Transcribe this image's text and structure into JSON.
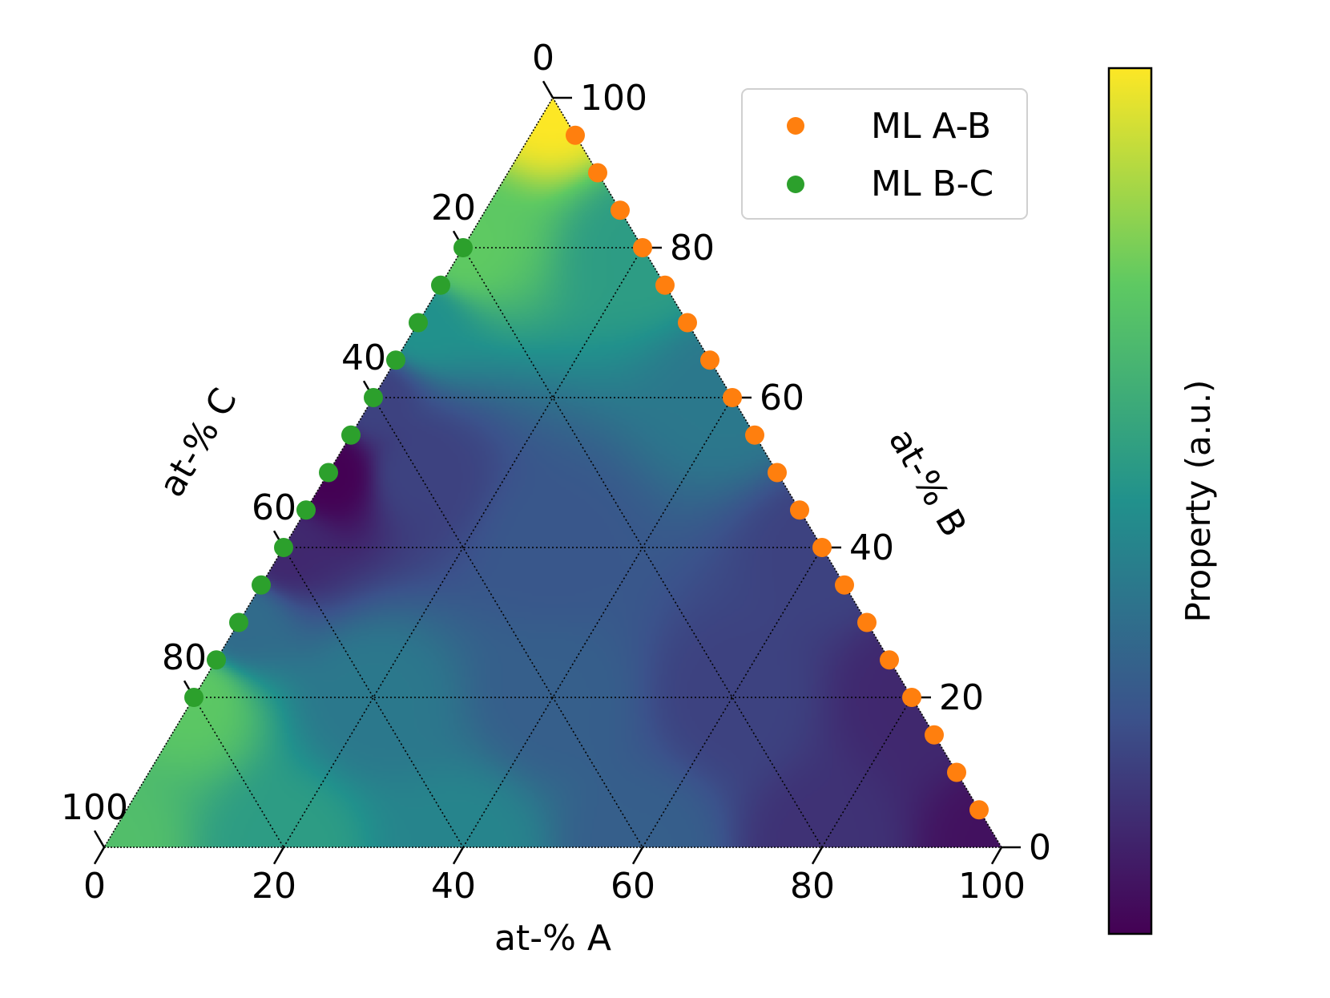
{
  "chart_data": {
    "type": "ternary-heatmap",
    "axes": {
      "A": {
        "label": "at-% A",
        "ticks": [
          0,
          20,
          40,
          60,
          80,
          100
        ],
        "range": [
          0,
          100
        ]
      },
      "B": {
        "label": "at-% B",
        "ticks": [
          0,
          20,
          40,
          60,
          80,
          100
        ],
        "range": [
          0,
          100
        ]
      },
      "C": {
        "label": "at-% C",
        "ticks": [
          0,
          20,
          40,
          60,
          80,
          100
        ],
        "range": [
          0,
          100
        ]
      }
    },
    "grid": true,
    "colormap": "viridis",
    "colorbar": {
      "label": "Property (a.u.)",
      "colors": [
        "#440154",
        "#3b528b",
        "#21918c",
        "#5ec962",
        "#fde725"
      ]
    },
    "field_anchors": [
      {
        "a": 0,
        "b": 100,
        "c": 0,
        "value": 1.0
      },
      {
        "a": 0,
        "b": 80,
        "c": 20,
        "value": 0.75
      },
      {
        "a": 0,
        "b": 70,
        "c": 30,
        "value": 0.5
      },
      {
        "a": 0,
        "b": 60,
        "c": 40,
        "value": 0.2
      },
      {
        "a": 0,
        "b": 50,
        "c": 50,
        "value": 0.0
      },
      {
        "a": 0,
        "b": 40,
        "c": 60,
        "value": 0.12
      },
      {
        "a": 0,
        "b": 30,
        "c": 70,
        "value": 0.35
      },
      {
        "a": 0,
        "b": 20,
        "c": 80,
        "value": 0.74
      },
      {
        "a": 0,
        "b": 0,
        "c": 100,
        "value": 0.7
      },
      {
        "a": 20,
        "b": 0,
        "c": 80,
        "value": 0.55
      },
      {
        "a": 40,
        "b": 0,
        "c": 60,
        "value": 0.45
      },
      {
        "a": 60,
        "b": 0,
        "c": 40,
        "value": 0.3
      },
      {
        "a": 80,
        "b": 0,
        "c": 20,
        "value": 0.15
      },
      {
        "a": 100,
        "b": 0,
        "c": 0,
        "value": 0.05
      },
      {
        "a": 80,
        "b": 20,
        "c": 0,
        "value": 0.12
      },
      {
        "a": 60,
        "b": 40,
        "c": 0,
        "value": 0.2
      },
      {
        "a": 40,
        "b": 60,
        "c": 0,
        "value": 0.4
      },
      {
        "a": 20,
        "b": 80,
        "c": 0,
        "value": 0.55
      },
      {
        "a": 10,
        "b": 50,
        "c": 40,
        "value": 0.2
      },
      {
        "a": 30,
        "b": 40,
        "c": 30,
        "value": 0.27
      },
      {
        "a": 40,
        "b": 20,
        "c": 40,
        "value": 0.3
      },
      {
        "a": 60,
        "b": 20,
        "c": 20,
        "value": 0.2
      },
      {
        "a": 20,
        "b": 20,
        "c": 60,
        "value": 0.4
      }
    ],
    "legend": {
      "position": "top-right"
    },
    "series": [
      {
        "name": "ML A-B",
        "color": "#ff7f0e",
        "points": [
          {
            "a": 5,
            "b": 95,
            "c": 0
          },
          {
            "a": 10,
            "b": 90,
            "c": 0
          },
          {
            "a": 15,
            "b": 85,
            "c": 0
          },
          {
            "a": 20,
            "b": 80,
            "c": 0
          },
          {
            "a": 25,
            "b": 75,
            "c": 0
          },
          {
            "a": 30,
            "b": 70,
            "c": 0
          },
          {
            "a": 35,
            "b": 65,
            "c": 0
          },
          {
            "a": 40,
            "b": 60,
            "c": 0
          },
          {
            "a": 45,
            "b": 55,
            "c": 0
          },
          {
            "a": 50,
            "b": 50,
            "c": 0
          },
          {
            "a": 55,
            "b": 45,
            "c": 0
          },
          {
            "a": 60,
            "b": 40,
            "c": 0
          },
          {
            "a": 65,
            "b": 35,
            "c": 0
          },
          {
            "a": 70,
            "b": 30,
            "c": 0
          },
          {
            "a": 75,
            "b": 25,
            "c": 0
          },
          {
            "a": 80,
            "b": 20,
            "c": 0
          },
          {
            "a": 85,
            "b": 15,
            "c": 0
          },
          {
            "a": 90,
            "b": 10,
            "c": 0
          },
          {
            "a": 95,
            "b": 5,
            "c": 0
          }
        ]
      },
      {
        "name": "ML B-C",
        "color": "#2ca02c",
        "points": [
          {
            "a": 0,
            "b": 80,
            "c": 20
          },
          {
            "a": 0,
            "b": 75,
            "c": 25
          },
          {
            "a": 0,
            "b": 70,
            "c": 30
          },
          {
            "a": 0,
            "b": 65,
            "c": 35
          },
          {
            "a": 0,
            "b": 60,
            "c": 40
          },
          {
            "a": 0,
            "b": 55,
            "c": 45
          },
          {
            "a": 0,
            "b": 50,
            "c": 50
          },
          {
            "a": 0,
            "b": 45,
            "c": 55
          },
          {
            "a": 0,
            "b": 40,
            "c": 60
          },
          {
            "a": 0,
            "b": 35,
            "c": 65
          },
          {
            "a": 0,
            "b": 30,
            "c": 70
          },
          {
            "a": 0,
            "b": 25,
            "c": 75
          },
          {
            "a": 0,
            "b": 20,
            "c": 80
          }
        ]
      }
    ]
  }
}
